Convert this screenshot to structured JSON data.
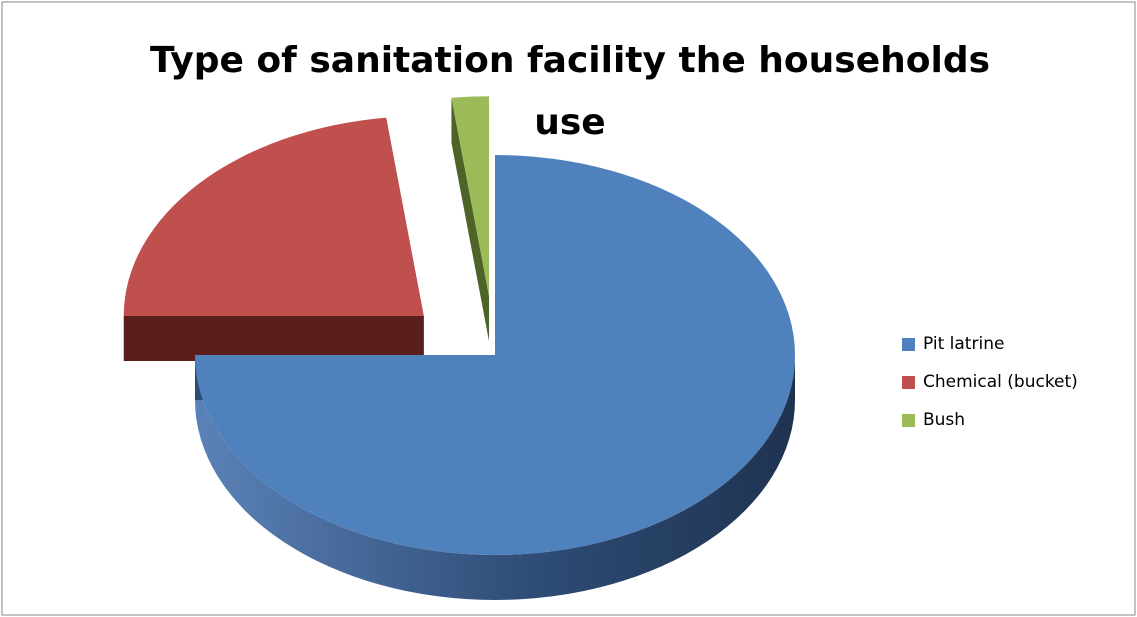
{
  "chart_data": {
    "type": "pie",
    "title": "Type of sanitation facility the households use",
    "categories": [
      "Pit latrine",
      "Chemical (bucket)",
      "Bush"
    ],
    "values": [
      75,
      23,
      2
    ],
    "colors": [
      "#4F81BD",
      "#C0504D",
      "#9BBB59"
    ],
    "side_colors": [
      "#2E4B73",
      "#5A1E1C",
      "#4E6328"
    ],
    "legend_position": "right",
    "exploded": true,
    "three_d": true
  }
}
